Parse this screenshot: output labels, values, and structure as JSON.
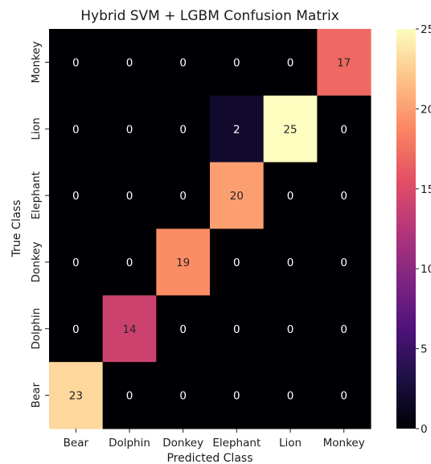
{
  "chart_data": {
    "type": "heatmap",
    "title": "Hybrid SVM + LGBM Confusion Matrix",
    "xlabel": "Predicted Class",
    "ylabel": "True Class",
    "x_categories": [
      "Bear",
      "Dolphin",
      "Donkey",
      "Elephant",
      "Lion",
      "Monkey"
    ],
    "y_categories_top_to_bottom": [
      "Monkey",
      "Lion",
      "Elephant",
      "Donkey",
      "Dolphin",
      "Bear"
    ],
    "values_top_to_bottom": [
      [
        0,
        0,
        0,
        0,
        0,
        17
      ],
      [
        0,
        0,
        0,
        2,
        25,
        0
      ],
      [
        0,
        0,
        0,
        20,
        0,
        0
      ],
      [
        0,
        0,
        19,
        0,
        0,
        0
      ],
      [
        0,
        14,
        0,
        0,
        0,
        0
      ],
      [
        23,
        0,
        0,
        0,
        0,
        0
      ]
    ],
    "colormap": "magma",
    "colorbar": {
      "range": [
        0,
        25
      ],
      "ticks": [
        0,
        5,
        10,
        15,
        20,
        25
      ],
      "tick_labels": [
        "0",
        "5",
        "10",
        "15",
        "20",
        "25"
      ]
    },
    "cell_text_colors": {
      "on_dark": "#ffffff",
      "on_light": "#262626"
    }
  }
}
